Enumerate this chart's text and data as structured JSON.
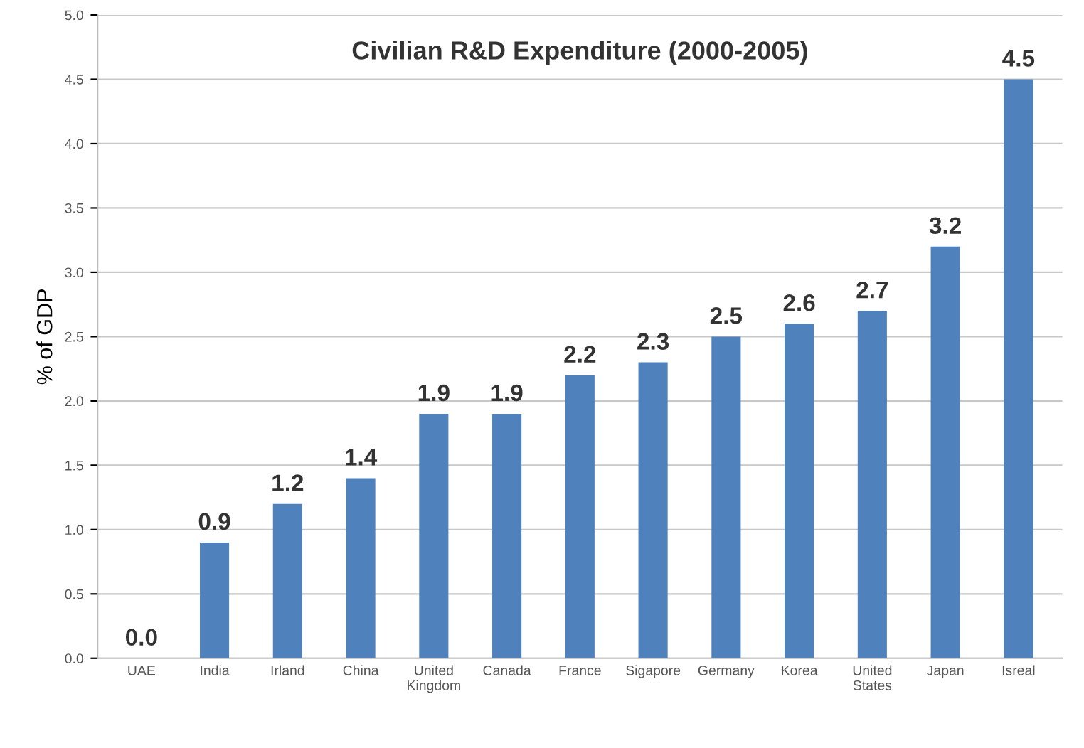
{
  "chart_data": {
    "type": "bar",
    "title": "Civilian R&D Expenditure (2000-2005)",
    "ylabel": "% of GDP",
    "categories": [
      "UAE",
      "India",
      "Irland",
      "China",
      "United Kingdom",
      "Canada",
      "France",
      "Sigapore",
      "Germany",
      "Korea",
      "United States",
      "Japan",
      "Isreal"
    ],
    "values": [
      0.0,
      0.9,
      1.2,
      1.4,
      1.9,
      1.9,
      2.2,
      2.3,
      2.5,
      2.6,
      2.7,
      3.2,
      4.5
    ],
    "value_labels": [
      "0.0",
      "0.9",
      "1.2",
      "1.4",
      "1.9",
      "1.9",
      "2.2",
      "2.3",
      "2.5",
      "2.6",
      "2.7",
      "3.2",
      "4.5"
    ],
    "color": "#4f81bd",
    "ylim": [
      0,
      5
    ],
    "yticks": [
      {
        "value": 0,
        "label": "0.0"
      },
      {
        "value": 0.5,
        "label": "0.5"
      },
      {
        "value": 1,
        "label": "1.0"
      },
      {
        "value": 1.5,
        "label": "1.5"
      },
      {
        "value": 2,
        "label": "2.0"
      },
      {
        "value": 2.5,
        "label": "2.5"
      },
      {
        "value": 3,
        "label": "3.0"
      },
      {
        "value": 3.5,
        "label": "3.5"
      },
      {
        "value": 4,
        "label": "4.0"
      },
      {
        "value": 4.5,
        "label": "4.5"
      },
      {
        "value": 5,
        "label": "5.0"
      }
    ],
    "grid": "y",
    "legend": false
  }
}
